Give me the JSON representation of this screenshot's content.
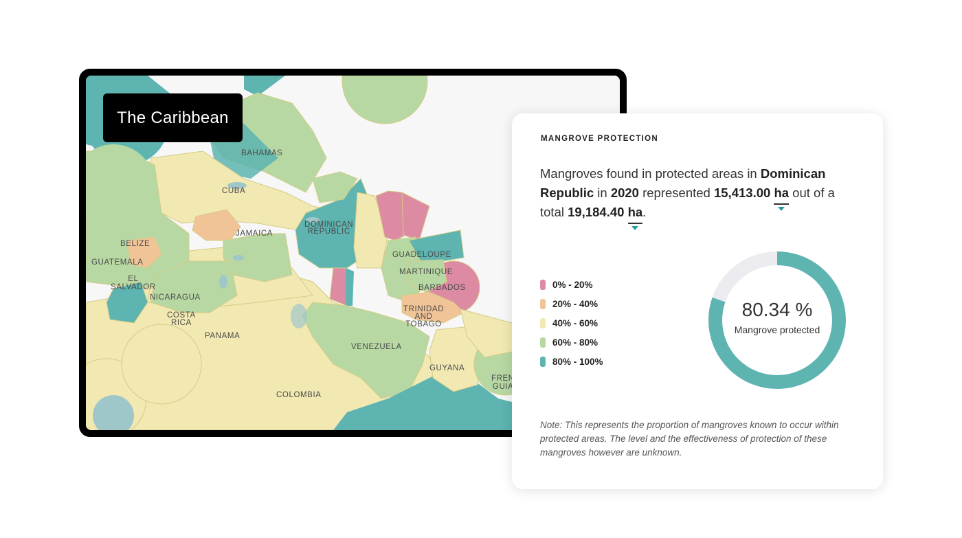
{
  "map": {
    "title": "The Caribbean",
    "labels": {
      "bahamas": "BAHAMAS",
      "cuba": "CUBA",
      "dominican_republic": "DOMINICAN\nREPUBLIC",
      "jamaica": "JAMAICA",
      "belize": "BELIZE",
      "guatemala": "GUATEMALA",
      "el_salvador": "EL\nSALVADOR",
      "nicaragua": "NICARAGUA",
      "costa_rica": "COSTA\nRICA",
      "panama": "PANAMA",
      "guadeloupe": "GUADELOUPE",
      "martinique": "MARTINIQUE",
      "barbados": "BARBADOS",
      "trinidad_and_tobago": "TRINIDAD\nAND\nTOBAGO",
      "venezuela": "VENEZUELA",
      "guyana": "GUYANA",
      "french_guiana": "FRENCH\nGUIANA",
      "colombia": "COLOMBIA"
    }
  },
  "card": {
    "heading": "MANGROVE PROTECTION",
    "sentence": {
      "p1": "Mangroves found in protected areas in ",
      "country": "Dominican Republic",
      "p2": " in ",
      "year": "2020",
      "p3": " represented ",
      "protected_value": "15,413.00",
      "unit": "ha",
      "p4": " out of a total ",
      "total_value": "19,184.40",
      "p5": "."
    },
    "legend": [
      {
        "label": "0% - 20%",
        "color": "#dd8aa3"
      },
      {
        "label": "20% - 40%",
        "color": "#f1c497"
      },
      {
        "label": "40% - 60%",
        "color": "#f1e8b2"
      },
      {
        "label": "60% - 80%",
        "color": "#b7d8a3"
      },
      {
        "label": "80% - 100%",
        "color": "#5db4b0"
      }
    ],
    "donut": {
      "value": "80.34 %",
      "percent": 80.34,
      "label": "Mangrove protected",
      "fill_color": "#5db4b0",
      "track_color": "#ebebf0"
    },
    "note": "Note: This represents the proportion of mangroves known to occur within protected areas. The level and the effectiveness of protection of these mangroves however are unknown."
  }
}
